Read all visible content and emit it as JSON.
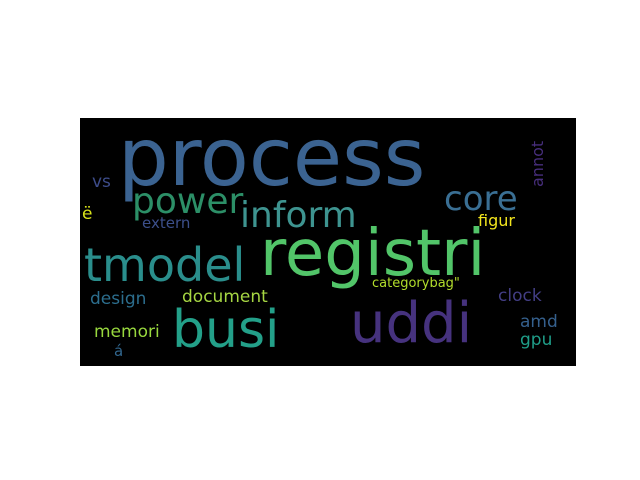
{
  "word_cloud": {
    "background": "#000000",
    "words": [
      {
        "text": "process",
        "color": "#3b6391"
      },
      {
        "text": "registri",
        "color": "#52c569"
      },
      {
        "text": "uddi",
        "color": "#46327e"
      },
      {
        "text": "busi",
        "color": "#23a089"
      },
      {
        "text": "tmodel",
        "color": "#2a8e8c"
      },
      {
        "text": "inform",
        "color": "#3e9490"
      },
      {
        "text": "power",
        "color": "#2c8f67"
      },
      {
        "text": "core",
        "color": "#3a6f94"
      },
      {
        "text": "document",
        "color": "#a6d643"
      },
      {
        "text": "design",
        "color": "#2c6e8e"
      },
      {
        "text": "annot",
        "color": "#472e7c"
      },
      {
        "text": "figur",
        "color": "#f2e51d"
      },
      {
        "text": "extern",
        "color": "#3c4f8a"
      },
      {
        "text": "categorybag\"",
        "color": "#b2dd2c"
      },
      {
        "text": "clock",
        "color": "#433e85"
      },
      {
        "text": "amd",
        "color": "#35608d"
      },
      {
        "text": "gpu",
        "color": "#1f9e89"
      },
      {
        "text": "memori",
        "color": "#98d83e"
      },
      {
        "text": "vs",
        "color": "#3d4c8a"
      },
      {
        "text": "ë",
        "color": "#d8e219"
      },
      {
        "text": "á",
        "color": "#31668e"
      }
    ]
  }
}
